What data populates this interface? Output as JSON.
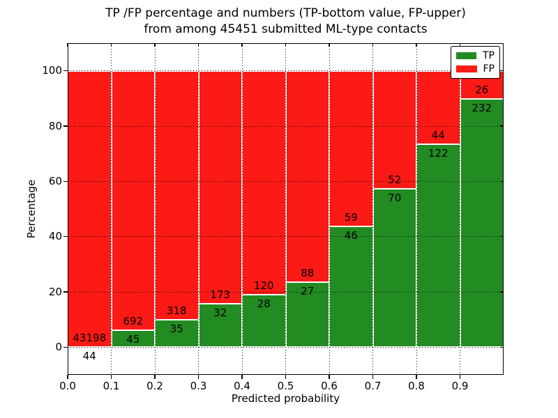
{
  "figure": {
    "background": "#ffffff",
    "title_line1": "TP /FP percentage and numbers (TP-bottom value, FP-upper)",
    "title_line2": "from among 45451 submitted ML-type contacts"
  },
  "chart_data": {
    "type": "bar",
    "variant": "stacked-percentage-histogram",
    "title": "TP /FP percentage and numbers (TP-bottom value, FP-upper) from among 45451 submitted ML-type contacts",
    "total_submitted_contacts": 45451,
    "xlabel": "Predicted probability",
    "ylabel": "Percentage",
    "xlim": [
      0.0,
      1.0
    ],
    "ylim": [
      -10,
      110
    ],
    "bin_width": 0.1,
    "bins_x_start": [
      0.0,
      0.1,
      0.2,
      0.3,
      0.4,
      0.5,
      0.6,
      0.7,
      0.8,
      0.9
    ],
    "x_ticks": [
      {
        "value": 0.0,
        "label": "0.0"
      },
      {
        "value": 0.1,
        "label": "0.1"
      },
      {
        "value": 0.2,
        "label": "0.2"
      },
      {
        "value": 0.3,
        "label": "0.3"
      },
      {
        "value": 0.4,
        "label": "0.4"
      },
      {
        "value": 0.5,
        "label": "0.5"
      },
      {
        "value": 0.6,
        "label": "0.6"
      },
      {
        "value": 0.7,
        "label": "0.7"
      },
      {
        "value": 0.8,
        "label": "0.8"
      },
      {
        "value": 0.9,
        "label": "0.9"
      }
    ],
    "y_ticks": [
      {
        "value": 0,
        "label": "0"
      },
      {
        "value": 20,
        "label": "20"
      },
      {
        "value": 40,
        "label": "40"
      },
      {
        "value": 60,
        "label": "60"
      },
      {
        "value": 80,
        "label": "80"
      },
      {
        "value": 100,
        "label": "100"
      }
    ],
    "grid_style": "dotted",
    "bar_edge_color": "#ffffff",
    "series": [
      {
        "name": "TP",
        "position": "bottom",
        "color": "#228b22",
        "values": [
          44,
          45,
          35,
          32,
          28,
          27,
          46,
          70,
          122,
          232
        ]
      },
      {
        "name": "FP",
        "position": "top",
        "color": "#fb1a15",
        "values": [
          43198,
          692,
          318,
          173,
          120,
          88,
          59,
          52,
          44,
          26
        ]
      }
    ],
    "legend": {
      "position": "upper-right",
      "entries": [
        "TP",
        "FP"
      ]
    }
  }
}
